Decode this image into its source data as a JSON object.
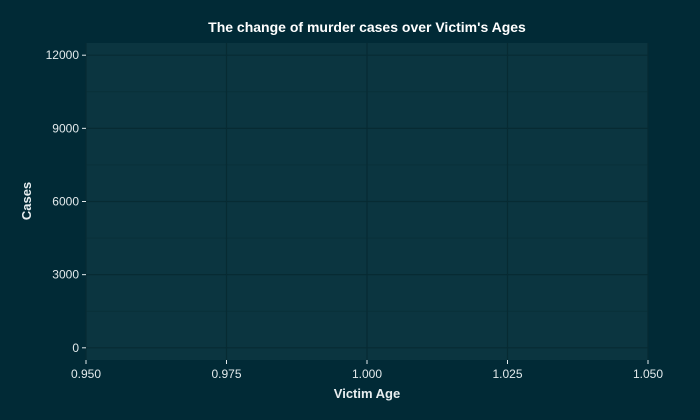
{
  "chart_data": {
    "type": "line",
    "title": "The change of murder cases over Victim's Ages",
    "xlabel": "Victim Age",
    "ylabel": "Cases",
    "xlim": [
      0.95,
      1.05
    ],
    "ylim": [
      -500,
      12500
    ],
    "x_ticks": [
      0.95,
      0.975,
      1.0,
      1.025,
      1.05
    ],
    "x_tick_labels": [
      "0.950",
      "0.975",
      "1.000",
      "1.025",
      "1.050"
    ],
    "y_ticks": [
      0,
      3000,
      6000,
      9000,
      12000
    ],
    "y_tick_labels": [
      "0",
      "3000",
      "6000",
      "9000",
      "12000"
    ],
    "grid": true,
    "series": [],
    "colors": {
      "background": "#012a36",
      "panel": "#0b3540",
      "grid_major": "#072b33",
      "grid_minor": "#093039",
      "text": "#e3eaec"
    }
  }
}
